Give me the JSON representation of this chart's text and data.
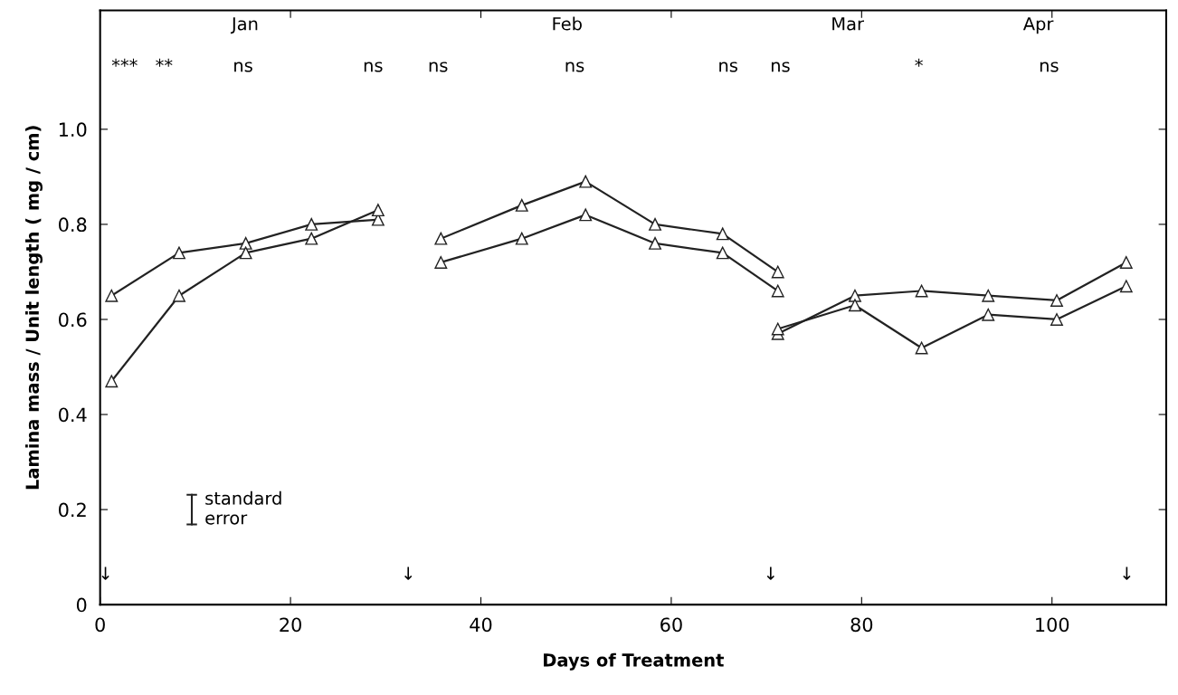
{
  "chart_data": {
    "type": "line",
    "xlabel": "Days of Treatment",
    "ylabel": "Lamina mass / Unit length ( mg / cm)",
    "series": [
      {
        "color": "#222222",
        "x": [
          1.2,
          8.3,
          15.3,
          22.2,
          29.2
        ],
        "values": [
          0.65,
          0.74,
          0.76,
          0.8,
          0.81
        ]
      },
      {
        "color": "#222222",
        "x": [
          1.2,
          8.3,
          15.3,
          22.2,
          29.2
        ],
        "values": [
          0.47,
          0.65,
          0.74,
          0.77,
          0.83
        ]
      },
      {
        "color": "#222222",
        "x": [
          35.8,
          44.3,
          51.0,
          58.3,
          65.4,
          71.2
        ],
        "values": [
          0.77,
          0.84,
          0.89,
          0.8,
          0.78,
          0.7
        ]
      },
      {
        "color": "#222222",
        "x": [
          35.8,
          44.3,
          51.0,
          58.3,
          65.4,
          71.2
        ],
        "values": [
          0.72,
          0.77,
          0.82,
          0.76,
          0.74,
          0.66
        ]
      },
      {
        "color": "#222222",
        "x": [
          71.2,
          79.3,
          86.3,
          93.3,
          100.5,
          107.8
        ],
        "values": [
          0.57,
          0.65,
          0.66,
          0.65,
          0.64,
          0.72
        ]
      },
      {
        "color": "#222222",
        "x": [
          71.2,
          79.3,
          86.3,
          93.3,
          100.5,
          107.8
        ],
        "values": [
          0.58,
          0.63,
          0.54,
          0.61,
          0.6,
          0.67
        ]
      }
    ],
    "marker": "triangle",
    "line_style": "solid",
    "xlim": [
      0,
      112
    ],
    "xticks": [
      0,
      20,
      40,
      60,
      80,
      100
    ],
    "ylim": [
      0,
      1.25
    ],
    "yticks": [
      0,
      0.2,
      0.4,
      0.6,
      0.8,
      {
        "value": 1.0,
        "label": "1.0"
      }
    ],
    "grid": false,
    "legend": false,
    "annotations": [
      "Jan",
      "Feb",
      "Mar",
      "Apr",
      "***",
      "**",
      "ns",
      "ns",
      "ns",
      "ns",
      "ns",
      "ns",
      "*",
      "ns",
      "↓",
      "↓",
      "↓",
      "↓",
      "standard\nerror"
    ]
  }
}
